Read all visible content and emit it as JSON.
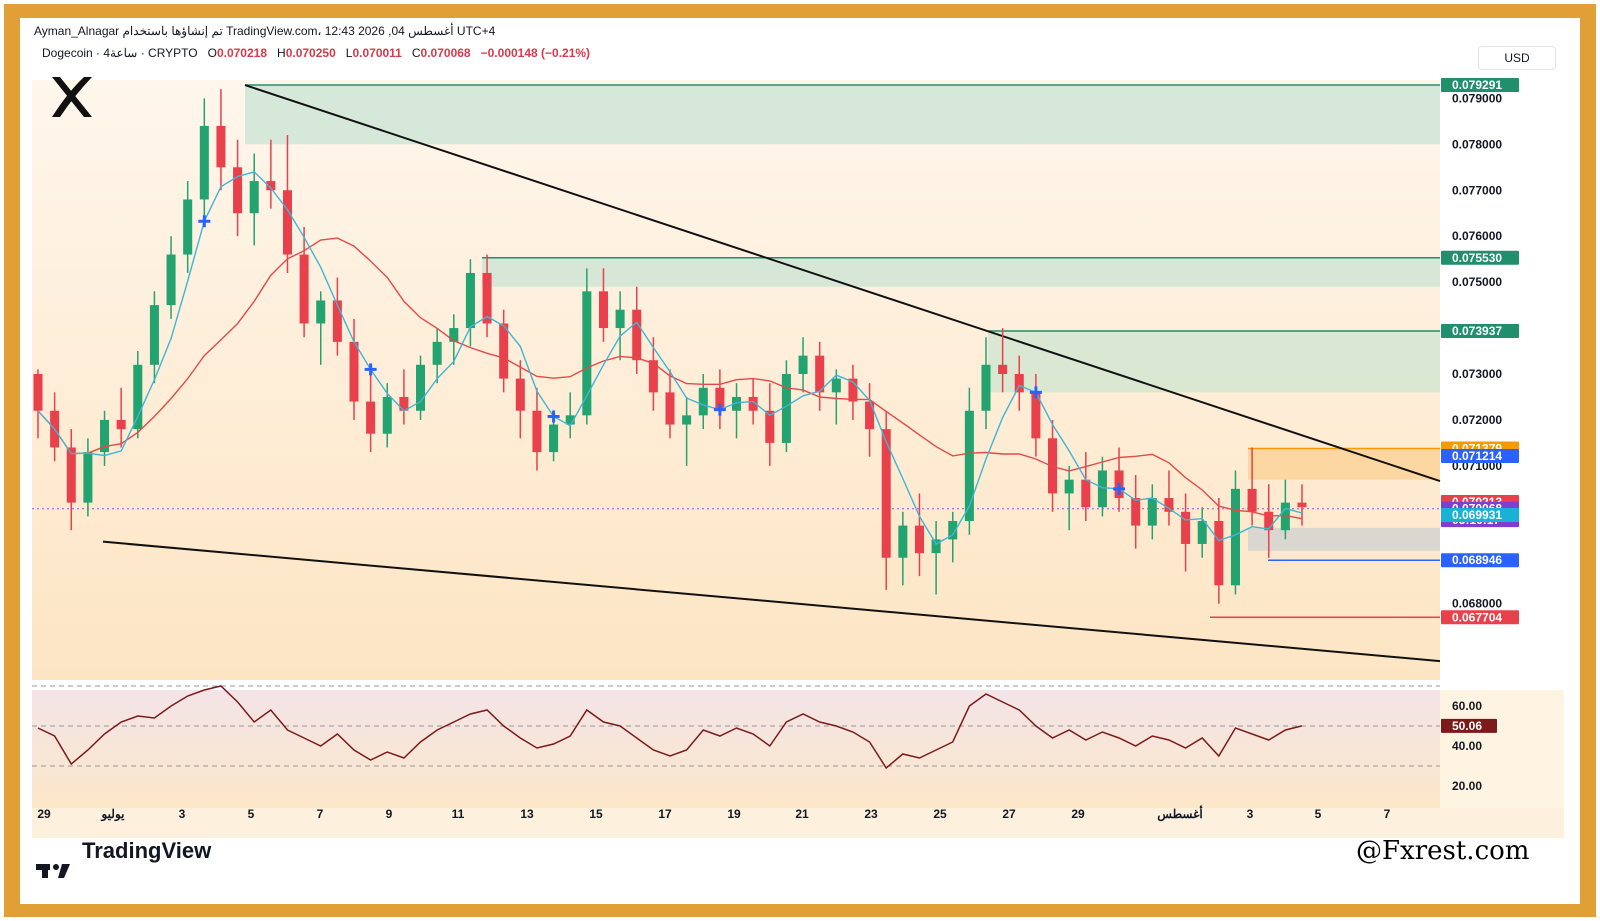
{
  "header": {
    "author_line": "Ayman_Alnagar تم إنشاؤها باستخدام TradingView.com، 12:43 2026 ,04 أغسطس UTC+4",
    "symbol_line": "Dogecoin · 4ساعة · CRYPTO",
    "open_label": "O",
    "open": "0.070218",
    "high_label": "H",
    "high": "0.070250",
    "low_label": "L",
    "low": "0.070011",
    "close_label": "C",
    "close": "0.070068",
    "change": "−0.000148 (−0.21%)"
  },
  "currency_button": "USD",
  "footer": {
    "tradingview_logo": "TradingView",
    "watermark": "@Fxrest.com"
  },
  "colors": {
    "frame": "#e0a035",
    "bull": "#22a36f",
    "bear": "#e8414c",
    "fast_ma": "#3fb6d6",
    "slow_ma": "#e34a4a",
    "rsi": "#7b1a1a",
    "zone": "#cfe5d6",
    "zone_line": "#1f8f6c"
  },
  "chart_data": [
    {
      "type": "candlestick",
      "title": "Dogecoin · 4ساعة · CRYPTO",
      "currency": "USD",
      "x_tick_labels": [
        "29",
        "يوليو",
        "3",
        "5",
        "7",
        "9",
        "11",
        "13",
        "15",
        "17",
        "19",
        "21",
        "23",
        "25",
        "27",
        "29",
        "أغسطس",
        "3",
        "5",
        "7"
      ],
      "y_tick_labels": [
        "0.079000",
        "0.078000",
        "0.077000",
        "0.076000",
        "0.075000",
        "0.073000",
        "0.072000",
        "0.071000",
        "0.068000"
      ],
      "ylim": [
        0.0666,
        0.0794
      ],
      "key_levels": [
        {
          "label": "0.079291",
          "value": 0.079291,
          "color": "#1f8f6c"
        },
        {
          "label": "0.075530",
          "value": 0.07553,
          "color": "#1f8f6c"
        },
        {
          "label": "0.073937",
          "value": 0.073937,
          "color": "#1f8f6c"
        },
        {
          "label": "0.071379",
          "value": 0.071379,
          "color": "#f59a00"
        },
        {
          "label": "0.071214",
          "value": 0.071214,
          "color": "#2962ff"
        },
        {
          "label": "0.070213",
          "value": 0.070213,
          "color": "#e8414c"
        },
        {
          "label": "0.070068",
          "value": 0.070068,
          "color": "#7e3fd0"
        },
        {
          "label": "03:16:17",
          "value": 0.06982,
          "color": "#7e3fd0"
        },
        {
          "label": "0.069931",
          "value": 0.069931,
          "color": "#1ab2d4"
        },
        {
          "label": "0.068946",
          "value": 0.068946,
          "color": "#2962ff"
        },
        {
          "label": "0.067704",
          "value": 0.067704,
          "color": "#e8414c"
        }
      ],
      "zones": [
        {
          "from": 0.078,
          "to": 0.079291,
          "color": "#cfe5d6"
        },
        {
          "from": 0.0749,
          "to": 0.07553,
          "color": "#cfe5d6"
        },
        {
          "from": 0.0726,
          "to": 0.073937,
          "color": "#d3e5d0"
        },
        {
          "from": 0.0707,
          "to": 0.071379,
          "color": "#fcd49a"
        },
        {
          "from": 0.06915,
          "to": 0.06965,
          "color": "#d4d2d0"
        }
      ],
      "trendlines": [
        {
          "from": {
            "x": 0,
            "y": 0.06935
          },
          "to": {
            "x": 1,
            "y": 0.06675
          }
        },
        {
          "from": {
            "x": 0.15,
            "y": 0.07929
          },
          "to": {
            "x": 1,
            "y": 0.07067
          }
        }
      ],
      "ohlc_series": [
        [
          0.073,
          0.0731,
          0.0716,
          0.0722
        ],
        [
          0.0722,
          0.0726,
          0.0711,
          0.0714
        ],
        [
          0.0714,
          0.0718,
          0.0696,
          0.0702
        ],
        [
          0.0702,
          0.0716,
          0.0699,
          0.0713
        ],
        [
          0.0713,
          0.0722,
          0.071,
          0.072
        ],
        [
          0.072,
          0.0727,
          0.0714,
          0.0718
        ],
        [
          0.0718,
          0.0735,
          0.0716,
          0.0732
        ],
        [
          0.0732,
          0.0748,
          0.0728,
          0.0745
        ],
        [
          0.0745,
          0.076,
          0.0742,
          0.0756
        ],
        [
          0.0756,
          0.0772,
          0.0752,
          0.0768
        ],
        [
          0.0768,
          0.079,
          0.0762,
          0.0784
        ],
        [
          0.0784,
          0.0792,
          0.077,
          0.0775
        ],
        [
          0.0775,
          0.0781,
          0.076,
          0.0765
        ],
        [
          0.0765,
          0.0778,
          0.0758,
          0.0772
        ],
        [
          0.0772,
          0.0781,
          0.0766,
          0.077
        ],
        [
          0.077,
          0.0782,
          0.0752,
          0.0756
        ],
        [
          0.0756,
          0.0762,
          0.0738,
          0.0741
        ],
        [
          0.0741,
          0.0748,
          0.0732,
          0.0746
        ],
        [
          0.0746,
          0.0751,
          0.0734,
          0.0737
        ],
        [
          0.0737,
          0.0742,
          0.072,
          0.0724
        ],
        [
          0.0724,
          0.073,
          0.0713,
          0.0717
        ],
        [
          0.0717,
          0.0728,
          0.0714,
          0.0725
        ],
        [
          0.0725,
          0.0731,
          0.0719,
          0.0722
        ],
        [
          0.0722,
          0.0734,
          0.072,
          0.0732
        ],
        [
          0.0732,
          0.074,
          0.0728,
          0.0737
        ],
        [
          0.0737,
          0.0743,
          0.0732,
          0.074
        ],
        [
          0.074,
          0.0755,
          0.0736,
          0.0752
        ],
        [
          0.0752,
          0.0756,
          0.0738,
          0.0741
        ],
        [
          0.0741,
          0.0744,
          0.0726,
          0.0729
        ],
        [
          0.0729,
          0.0733,
          0.0716,
          0.0722
        ],
        [
          0.0722,
          0.0727,
          0.0709,
          0.0713
        ],
        [
          0.0713,
          0.0722,
          0.0711,
          0.0719
        ],
        [
          0.0719,
          0.0726,
          0.0716,
          0.0721
        ],
        [
          0.0721,
          0.0753,
          0.0719,
          0.0748
        ],
        [
          0.0748,
          0.0753,
          0.0737,
          0.074
        ],
        [
          0.074,
          0.0748,
          0.0733,
          0.0744
        ],
        [
          0.0744,
          0.0749,
          0.073,
          0.0733
        ],
        [
          0.0733,
          0.0738,
          0.0722,
          0.0726
        ],
        [
          0.0726,
          0.0731,
          0.0716,
          0.0719
        ],
        [
          0.0719,
          0.0725,
          0.071,
          0.0721
        ],
        [
          0.0721,
          0.073,
          0.0718,
          0.0727
        ],
        [
          0.0727,
          0.0731,
          0.0718,
          0.0722
        ],
        [
          0.0722,
          0.0728,
          0.0716,
          0.0725
        ],
        [
          0.0725,
          0.0729,
          0.0719,
          0.0722
        ],
        [
          0.0722,
          0.0728,
          0.071,
          0.0715
        ],
        [
          0.0715,
          0.0733,
          0.0713,
          0.073
        ],
        [
          0.073,
          0.0738,
          0.0726,
          0.0734
        ],
        [
          0.0734,
          0.0737,
          0.0722,
          0.0726
        ],
        [
          0.0726,
          0.0731,
          0.0719,
          0.0729
        ],
        [
          0.0729,
          0.0732,
          0.072,
          0.0724
        ],
        [
          0.0724,
          0.0728,
          0.0712,
          0.0718
        ],
        [
          0.0718,
          0.0722,
          0.0683,
          0.069
        ],
        [
          0.069,
          0.07,
          0.0684,
          0.0697
        ],
        [
          0.0697,
          0.0704,
          0.0686,
          0.0691
        ],
        [
          0.0691,
          0.0698,
          0.0682,
          0.0694
        ],
        [
          0.0694,
          0.07,
          0.0689,
          0.0698
        ],
        [
          0.0698,
          0.0727,
          0.0695,
          0.0722
        ],
        [
          0.0722,
          0.0738,
          0.0718,
          0.0732
        ],
        [
          0.0732,
          0.074,
          0.0726,
          0.073
        ],
        [
          0.073,
          0.0734,
          0.0722,
          0.0726
        ],
        [
          0.0726,
          0.073,
          0.0712,
          0.0716
        ],
        [
          0.0716,
          0.072,
          0.07,
          0.0704
        ],
        [
          0.0704,
          0.071,
          0.0696,
          0.0707
        ],
        [
          0.0707,
          0.0713,
          0.0698,
          0.0701
        ],
        [
          0.0701,
          0.0712,
          0.0699,
          0.0709
        ],
        [
          0.0709,
          0.0714,
          0.07,
          0.0703
        ],
        [
          0.0703,
          0.0708,
          0.0692,
          0.0697
        ],
        [
          0.0697,
          0.0706,
          0.0694,
          0.0703
        ],
        [
          0.0703,
          0.0709,
          0.0697,
          0.07
        ],
        [
          0.07,
          0.0704,
          0.0687,
          0.0693
        ],
        [
          0.0693,
          0.0701,
          0.069,
          0.0698
        ],
        [
          0.0698,
          0.0703,
          0.068,
          0.0684
        ],
        [
          0.0684,
          0.0709,
          0.0682,
          0.0705
        ],
        [
          0.0705,
          0.0714,
          0.0697,
          0.07
        ],
        [
          0.07,
          0.0706,
          0.069,
          0.0696
        ],
        [
          0.0696,
          0.0707,
          0.0694,
          0.0702
        ],
        [
          0.0702,
          0.0706,
          0.0697,
          0.0701
        ]
      ]
    },
    {
      "type": "line",
      "title": "RSI",
      "y_tick_labels": [
        "60.00",
        "40.00",
        "20.00"
      ],
      "last_value_label": "50.06",
      "ylim": [
        15,
        72
      ],
      "levels": [
        70,
        50,
        30
      ],
      "values": [
        49,
        45,
        31,
        38,
        46,
        52,
        55,
        54,
        60,
        65,
        68,
        70,
        62,
        52,
        58,
        48,
        44,
        40,
        46,
        38,
        33,
        37,
        34,
        42,
        48,
        52,
        56,
        58,
        50,
        44,
        39,
        41,
        45,
        58,
        52,
        50,
        44,
        38,
        35,
        38,
        48,
        45,
        49,
        46,
        40,
        52,
        56,
        52,
        50,
        47,
        42,
        29,
        36,
        34,
        38,
        42,
        60,
        66,
        62,
        58,
        50,
        44,
        48,
        43,
        47,
        44,
        40,
        45,
        43,
        39,
        44,
        35,
        49,
        46,
        43,
        48,
        50.06
      ]
    }
  ]
}
